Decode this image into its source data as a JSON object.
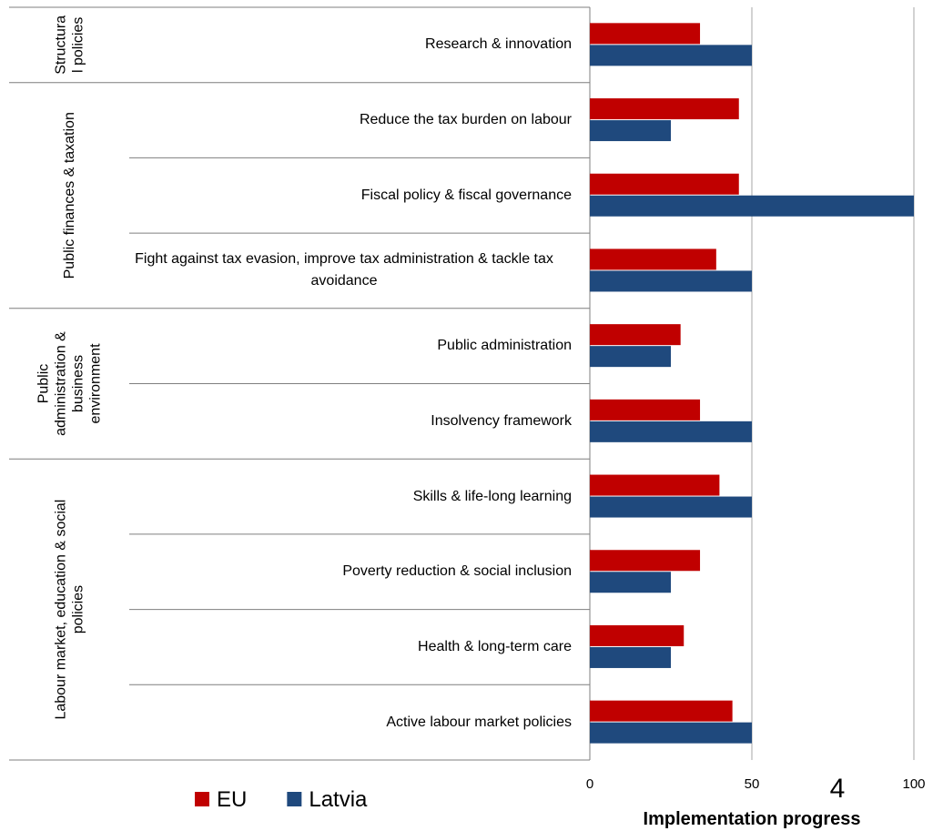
{
  "chart_data": {
    "type": "bar",
    "orientation": "horizontal",
    "groups": [
      {
        "name": [
          "Structura",
          "l policies"
        ],
        "categories": [
          "Research & innovation"
        ]
      },
      {
        "name": [
          "Public finances & taxation"
        ],
        "categories": [
          "Reduce the tax burden on labour",
          "Fiscal policy & fiscal governance",
          "Fight against tax evasion, improve tax administration & tackle tax avoidance"
        ]
      },
      {
        "name": [
          "Public",
          "administration &",
          "business",
          "environment"
        ],
        "categories": [
          "Public administration",
          "Insolvency framework"
        ]
      },
      {
        "name": [
          "Labour market, education & social",
          "policies"
        ],
        "categories": [
          "Skills & life-long learning",
          "Poverty reduction & social inclusion",
          "Health & long-term care",
          "Active labour market policies"
        ]
      }
    ],
    "series": [
      {
        "name": "EU",
        "color": "#c00000",
        "values": [
          34,
          46,
          46,
          39,
          28,
          34,
          40,
          34,
          29,
          44
        ]
      },
      {
        "name": "Latvia",
        "color": "#1f497d",
        "values": [
          50,
          25,
          100,
          50,
          25,
          50,
          50,
          25,
          25,
          50
        ]
      }
    ],
    "xlim": [
      0,
      100
    ],
    "xticks": [
      0,
      50,
      100
    ],
    "grid": true,
    "xlabel": "Implementation progress",
    "legend": "bottom-left",
    "page_number": "4"
  }
}
